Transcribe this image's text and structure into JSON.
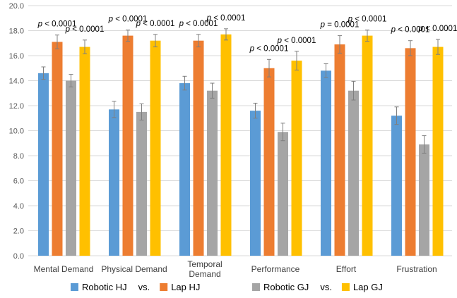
{
  "chart_data": {
    "type": "bar",
    "title": "",
    "xlabel": "",
    "ylabel": "",
    "ylim": [
      0,
      20
    ],
    "yticks": [
      "0.0",
      "2.0",
      "4.0",
      "6.0",
      "8.0",
      "10.0",
      "12.0",
      "14.0",
      "16.0",
      "18.0",
      "20.0"
    ],
    "ytick_values": [
      0,
      2,
      4,
      6,
      8,
      10,
      12,
      14,
      16,
      18,
      20
    ],
    "categories": [
      [
        "Mental Demand"
      ],
      [
        "Physical Demand"
      ],
      [
        "Temporal",
        "Demand"
      ],
      [
        "Performance"
      ],
      [
        "Effort"
      ],
      [
        "Frustration"
      ]
    ],
    "series": [
      {
        "name": "Robotic HJ",
        "color": "#5b9bd5",
        "values": [
          14.6,
          11.7,
          13.8,
          11.6,
          14.8,
          11.2
        ],
        "errors": [
          0.5,
          0.65,
          0.55,
          0.6,
          0.55,
          0.7
        ]
      },
      {
        "name": "Lap HJ",
        "color": "#ed7d31",
        "values": [
          17.1,
          17.6,
          17.2,
          15.0,
          16.9,
          16.6
        ],
        "errors": [
          0.55,
          0.45,
          0.5,
          0.7,
          0.7,
          0.6
        ]
      },
      {
        "name": "Robotic GJ",
        "color": "#a5a5a5",
        "values": [
          14.0,
          11.5,
          13.2,
          9.9,
          13.2,
          8.9
        ],
        "errors": [
          0.5,
          0.65,
          0.6,
          0.7,
          0.75,
          0.7
        ]
      },
      {
        "name": "Lap GJ",
        "color": "#ffc000",
        "values": [
          16.7,
          17.2,
          17.7,
          15.6,
          17.6,
          16.7
        ],
        "errors": [
          0.55,
          0.5,
          0.45,
          0.75,
          0.45,
          0.6
        ]
      }
    ],
    "annotations": [
      {
        "text": "p < 0.0001",
        "category": 0,
        "series": 1
      },
      {
        "text": "p < 0.0001",
        "category": 0,
        "series": 3
      },
      {
        "text": "p < 0.0001",
        "category": 1,
        "series": 1
      },
      {
        "text": "p < 0.0001",
        "category": 1,
        "series": 3
      },
      {
        "text": "p < 0.0001",
        "category": 2,
        "series": 1
      },
      {
        "text": "p < 0.0001",
        "category": 2,
        "series": 3
      },
      {
        "text": "p < 0.0001",
        "category": 3,
        "series": 1
      },
      {
        "text": "p < 0.0001",
        "category": 3,
        "series": 3
      },
      {
        "text": "p = 0.0001",
        "category": 4,
        "series": 1
      },
      {
        "text": "p < 0.0001",
        "category": 4,
        "series": 3
      },
      {
        "text": "p < 0.0001",
        "category": 5,
        "series": 1
      },
      {
        "text": "p < 0.0001",
        "category": 5,
        "series": 3
      }
    ],
    "legend": {
      "position": "bottom",
      "items": [
        {
          "label": "Robotic HJ",
          "series": 0
        },
        {
          "label": "vs."
        },
        {
          "label": "Lap HJ",
          "series": 1
        },
        {
          "label": "Robotic GJ",
          "series": 2
        },
        {
          "label": "vs."
        },
        {
          "label": "Lap GJ",
          "series": 3
        }
      ]
    },
    "grid": true
  }
}
